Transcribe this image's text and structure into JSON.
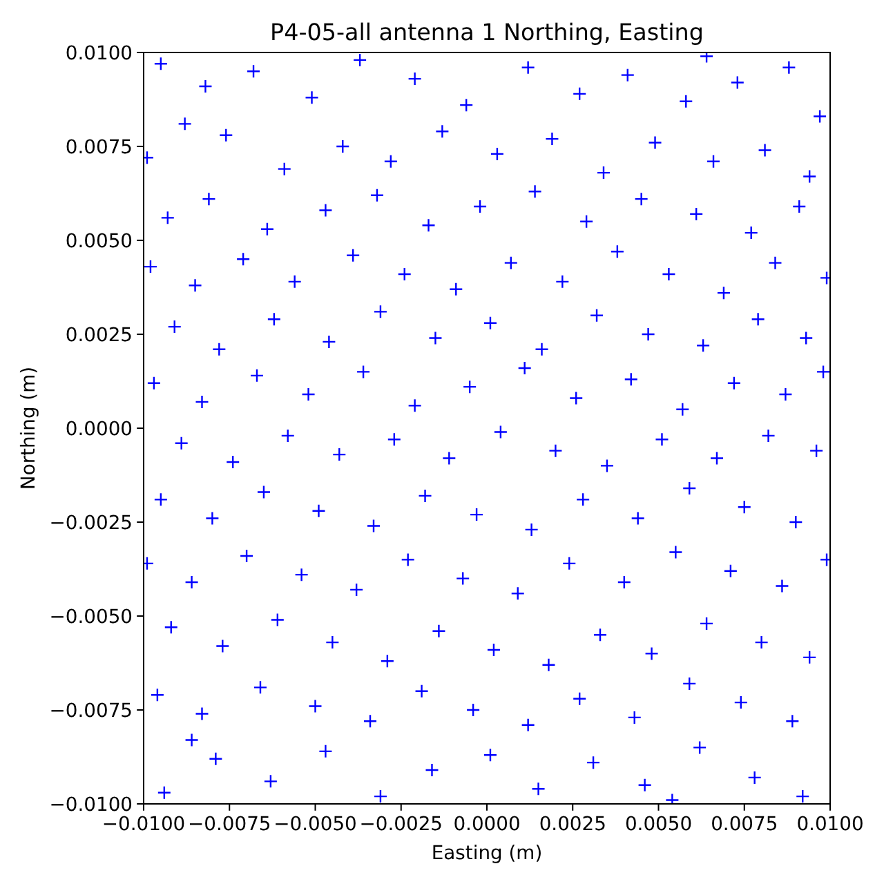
{
  "chart_data": {
    "type": "scatter",
    "title": "P4-05-all antenna 1 Northing, Easting",
    "xlabel": "Easting (m)",
    "ylabel": "Northing (m)",
    "color": "#0000ff",
    "marker": "cross",
    "xlim": [
      -0.01,
      0.01
    ],
    "ylim": [
      -0.01,
      0.01
    ],
    "xticks": [
      {
        "value": -0.01,
        "label": "−0.0100"
      },
      {
        "value": -0.0075,
        "label": "−0.0075"
      },
      {
        "value": -0.005,
        "label": "−0.0050"
      },
      {
        "value": -0.0025,
        "label": "−0.0025"
      },
      {
        "value": 0,
        "label": "0.0000"
      },
      {
        "value": 0.0025,
        "label": "0.0025"
      },
      {
        "value": 0.005,
        "label": "0.0050"
      },
      {
        "value": 0.0075,
        "label": "0.0075"
      },
      {
        "value": 0.01,
        "label": "0.0100"
      }
    ],
    "yticks": [
      {
        "value": -0.01,
        "label": "−0.0100"
      },
      {
        "value": -0.0075,
        "label": "−0.0075"
      },
      {
        "value": -0.005,
        "label": "−0.0050"
      },
      {
        "value": -0.0025,
        "label": "−0.0025"
      },
      {
        "value": 0,
        "label": "0.0000"
      },
      {
        "value": 0.0025,
        "label": "0.0025"
      },
      {
        "value": 0.005,
        "label": "0.0050"
      },
      {
        "value": 0.0075,
        "label": "0.0075"
      },
      {
        "value": 0.01,
        "label": "0.0100"
      }
    ],
    "x": [
      -0.0095,
      -0.0082,
      -0.0068,
      -0.0051,
      -0.0037,
      -0.0021,
      -0.0006,
      0.0012,
      0.0027,
      0.0041,
      0.0058,
      0.0073,
      0.0088,
      0.0097,
      -0.0088,
      0.0064,
      -0.0099,
      -0.0076,
      -0.0059,
      -0.0042,
      -0.0028,
      -0.0013,
      0.0003,
      0.0019,
      0.0034,
      0.0049,
      0.0066,
      0.0081,
      0.0094,
      -0.0093,
      -0.0081,
      -0.0064,
      -0.0047,
      -0.0032,
      -0.0017,
      -0.0002,
      0.0014,
      0.0029,
      0.0045,
      0.0061,
      0.0077,
      0.0091,
      -0.0098,
      -0.0085,
      -0.0071,
      -0.0056,
      -0.0039,
      -0.0024,
      -0.0009,
      0.0007,
      0.0022,
      0.0038,
      0.0053,
      0.0069,
      0.0084,
      0.0099,
      -0.0091,
      -0.0078,
      -0.0062,
      -0.0046,
      -0.0031,
      -0.0015,
      0.0001,
      0.0016,
      0.0032,
      0.0047,
      0.0063,
      0.0079,
      0.0093,
      -0.0097,
      -0.0083,
      -0.0067,
      -0.0052,
      -0.0036,
      -0.0021,
      -0.0005,
      0.0011,
      0.0026,
      0.0042,
      0.0057,
      0.0072,
      0.0087,
      0.0098,
      -0.0089,
      -0.0074,
      -0.0058,
      -0.0043,
      -0.0027,
      -0.0011,
      0.0004,
      0.002,
      0.0035,
      0.0051,
      0.0067,
      0.0082,
      0.0096,
      -0.0095,
      -0.008,
      -0.0065,
      -0.0049,
      -0.0033,
      -0.0018,
      -0.0003,
      0.0013,
      0.0028,
      0.0044,
      0.0059,
      0.0075,
      0.009,
      -0.0099,
      -0.0086,
      -0.007,
      -0.0054,
      -0.0038,
      -0.0023,
      -0.0007,
      0.0009,
      0.0024,
      0.004,
      0.0055,
      0.0071,
      0.0086,
      0.0099,
      -0.0092,
      -0.0077,
      -0.0061,
      -0.0045,
      -0.0029,
      -0.0014,
      0.0002,
      0.0018,
      0.0033,
      0.0048,
      0.0064,
      0.008,
      0.0094,
      -0.0096,
      -0.0083,
      -0.0066,
      -0.005,
      -0.0034,
      -0.0019,
      -0.0004,
      0.0012,
      0.0027,
      0.0043,
      0.0059,
      0.0074,
      0.0089,
      -0.0094,
      -0.0079,
      -0.0063,
      -0.0047,
      -0.0031,
      -0.0016,
      0.0001,
      0.0015,
      0.0031,
      0.0046,
      0.0062,
      0.0078,
      0.0092,
      -0.0086,
      0.0054
    ],
    "values": [
      0.0097,
      0.0091,
      0.0095,
      0.0088,
      0.0098,
      0.0093,
      0.0086,
      0.0096,
      0.0089,
      0.0094,
      0.0087,
      0.0092,
      0.0096,
      0.0083,
      0.0081,
      0.0099,
      0.0072,
      0.0078,
      0.0069,
      0.0075,
      0.0071,
      0.0079,
      0.0073,
      0.0077,
      0.0068,
      0.0076,
      0.0071,
      0.0074,
      0.0067,
      0.0056,
      0.0061,
      0.0053,
      0.0058,
      0.0062,
      0.0054,
      0.0059,
      0.0063,
      0.0055,
      0.0061,
      0.0057,
      0.0052,
      0.0059,
      0.0043,
      0.0038,
      0.0045,
      0.0039,
      0.0046,
      0.0041,
      0.0037,
      0.0044,
      0.0039,
      0.0047,
      0.0041,
      0.0036,
      0.0044,
      0.004,
      0.0027,
      0.0021,
      0.0029,
      0.0023,
      0.0031,
      0.0024,
      0.0028,
      0.0021,
      0.003,
      0.0025,
      0.0022,
      0.0029,
      0.0024,
      0.0012,
      0.0007,
      0.0014,
      0.0009,
      0.0015,
      0.0006,
      0.0011,
      0.0016,
      0.0008,
      0.0013,
      0.0005,
      0.0012,
      0.0009,
      0.0015,
      -0.0004,
      -0.0009,
      -0.0002,
      -0.0007,
      -0.0003,
      -0.0008,
      -0.0001,
      -0.0006,
      -0.001,
      -0.0003,
      -0.0008,
      -0.0002,
      -0.0006,
      -0.0019,
      -0.0024,
      -0.0017,
      -0.0022,
      -0.0026,
      -0.0018,
      -0.0023,
      -0.0027,
      -0.0019,
      -0.0024,
      -0.0016,
      -0.0021,
      -0.0025,
      -0.0036,
      -0.0041,
      -0.0034,
      -0.0039,
      -0.0043,
      -0.0035,
      -0.004,
      -0.0044,
      -0.0036,
      -0.0041,
      -0.0033,
      -0.0038,
      -0.0042,
      -0.0035,
      -0.0053,
      -0.0058,
      -0.0051,
      -0.0057,
      -0.0062,
      -0.0054,
      -0.0059,
      -0.0063,
      -0.0055,
      -0.006,
      -0.0052,
      -0.0057,
      -0.0061,
      -0.0071,
      -0.0076,
      -0.0069,
      -0.0074,
      -0.0078,
      -0.007,
      -0.0075,
      -0.0079,
      -0.0072,
      -0.0077,
      -0.0068,
      -0.0073,
      -0.0078,
      -0.0097,
      -0.0088,
      -0.0094,
      -0.0086,
      -0.0098,
      -0.0091,
      -0.0087,
      -0.0096,
      -0.0089,
      -0.0095,
      -0.0085,
      -0.0093,
      -0.0098,
      -0.0083,
      -0.0099
    ]
  }
}
